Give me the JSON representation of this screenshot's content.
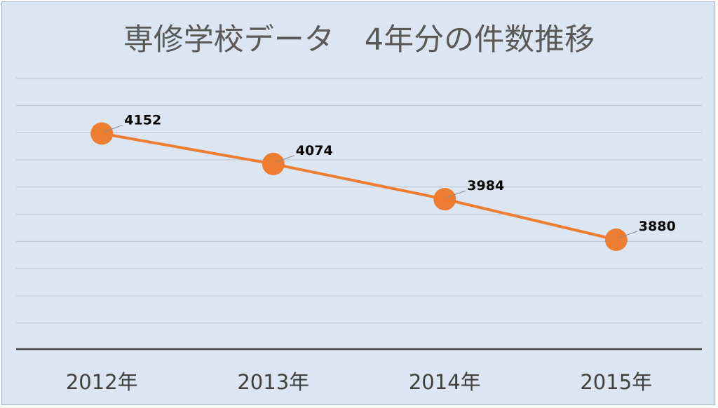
{
  "chart_data": {
    "type": "line",
    "title": "専修学校データ　4年分の件数推移",
    "categories": [
      "2012年",
      "2013年",
      "2014年",
      "2015年"
    ],
    "values": [
      4152,
      4074,
      3984,
      3880
    ],
    "data_labels": [
      "4152",
      "4074",
      "3984",
      "3880"
    ],
    "ylim": [
      3600,
      4300
    ],
    "y_axis_labels_visible": false,
    "grid": true,
    "legend": "none",
    "colors": {
      "series": "#ed7d31",
      "background": "#dce6f2",
      "gridline": "#b8c4d0",
      "axis": "#404040"
    }
  }
}
